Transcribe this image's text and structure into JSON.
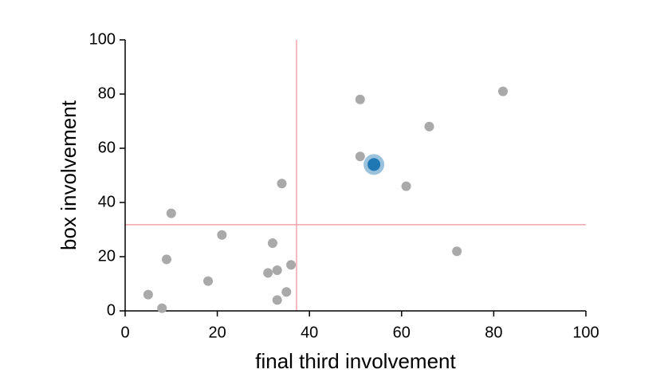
{
  "chart_data": {
    "type": "scatter",
    "x_label": "final third involvement",
    "y_label": "box involvement",
    "xlim": [
      0,
      100
    ],
    "ylim": [
      0,
      100
    ],
    "xticks": [
      0,
      20,
      40,
      60,
      80,
      100
    ],
    "yticks": [
      0,
      20,
      40,
      60,
      80,
      100
    ],
    "series": [
      {
        "color": "#a9a9a9",
        "x": [
          5,
          8,
          9,
          10,
          18,
          21,
          31,
          32,
          33,
          33,
          34,
          35,
          36,
          51,
          51,
          61,
          66,
          72,
          82
        ],
        "values": [
          6,
          1,
          19,
          36,
          11,
          28,
          14,
          25,
          15,
          4,
          47,
          7,
          17,
          78,
          57,
          46,
          68,
          22,
          81
        ]
      },
      {
        "color": "#1f77b4",
        "highlight": true,
        "x": [
          54
        ],
        "values": [
          54
        ]
      }
    ],
    "reference_lines": {
      "color": "#f2a5a8",
      "x": 37.2,
      "y": 31.8
    }
  }
}
